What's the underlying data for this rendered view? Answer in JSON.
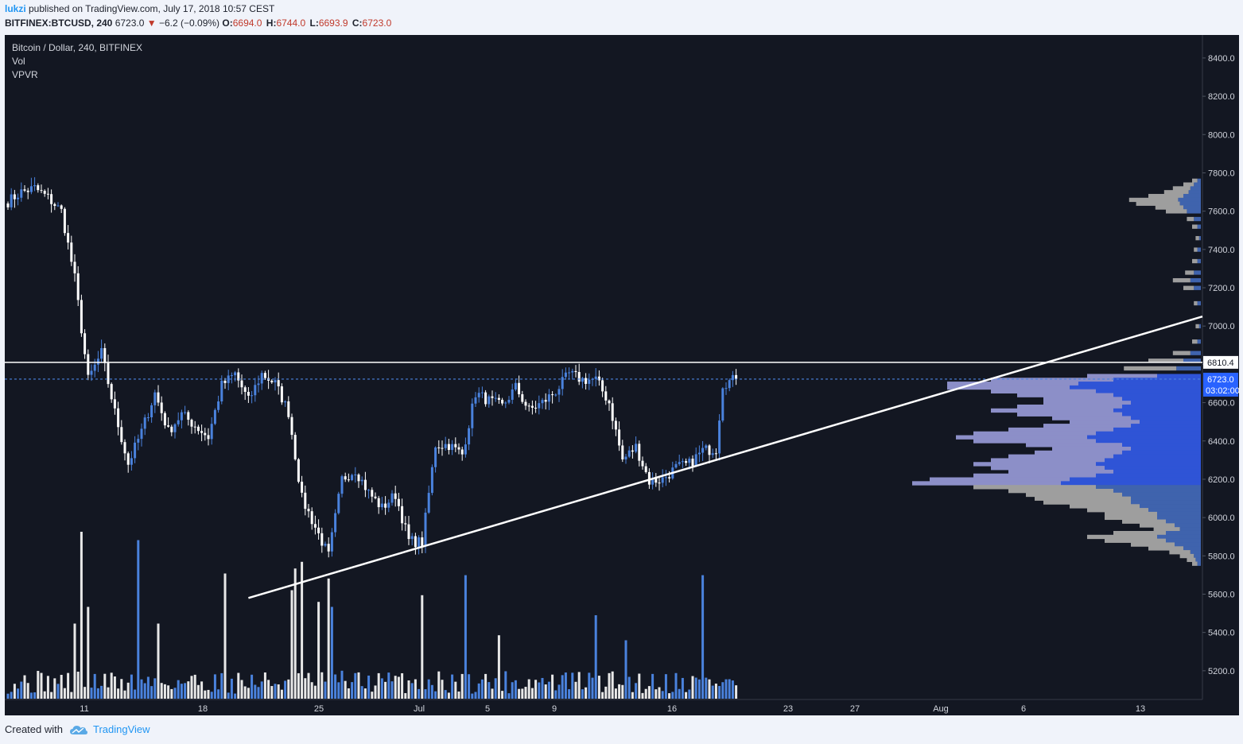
{
  "header": {
    "user": "lukzi",
    "published_text": " published on TradingView.com, July 17, 2018 10:57 CEST",
    "symbol": "BITFINEX:BTCUSD, 240",
    "last": "6723.0",
    "change": "−6.2 (−0.09%)",
    "o_label": "O:",
    "o_val": "6694.0",
    "h_label": "H:",
    "h_val": "6744.0",
    "l_label": "L:",
    "l_val": "6693.9",
    "c_label": "C:",
    "c_val": "6723.0"
  },
  "legend": {
    "title": "Bitcoin / Dollar, 240, BITFINEX",
    "vol": "Vol",
    "vpvr": "VPVR"
  },
  "footer": {
    "created_with": "Created with",
    "brand": "TradingView"
  },
  "colors": {
    "background": "#131722",
    "up": "#4a82dd",
    "down": "#ffffff",
    "profile_up": "#2f54d6",
    "profile_down": "#8c8fc8",
    "profile_gray": "#9e9e9e",
    "profile_gray_blue": "#3f63ad",
    "axis_text": "#d1d4dc",
    "label_bg": "#2962ff"
  },
  "chart_data": {
    "type": "candlestick",
    "symbol": "BTCUSD",
    "timeframe": "240",
    "ylim": [
      5050,
      8520
    ],
    "y_ticks": [
      5200,
      5400,
      5600,
      5800,
      6000,
      6200,
      6400,
      6600,
      6800,
      7000,
      7200,
      7400,
      7600,
      7800,
      8000,
      8200,
      8400
    ],
    "x_ticks": [
      "11",
      "18",
      "25",
      "Jul",
      "5",
      "9",
      "16",
      "23",
      "27",
      "Aug",
      "6",
      "13"
    ],
    "anchors": [
      {
        "t": 0,
        "p": 7650
      },
      {
        "t": 4,
        "p": 7700
      },
      {
        "t": 8,
        "p": 7720
      },
      {
        "t": 12,
        "p": 7670
      },
      {
        "t": 16,
        "p": 7600
      },
      {
        "t": 20,
        "p": 7250
      },
      {
        "t": 24,
        "p": 6720
      },
      {
        "t": 28,
        "p": 6860
      },
      {
        "t": 32,
        "p": 6550
      },
      {
        "t": 36,
        "p": 6280
      },
      {
        "t": 40,
        "p": 6450
      },
      {
        "t": 44,
        "p": 6650
      },
      {
        "t": 48,
        "p": 6450
      },
      {
        "t": 52,
        "p": 6540
      },
      {
        "t": 56,
        "p": 6480
      },
      {
        "t": 60,
        "p": 6420
      },
      {
        "t": 64,
        "p": 6690
      },
      {
        "t": 68,
        "p": 6750
      },
      {
        "t": 72,
        "p": 6610
      },
      {
        "t": 76,
        "p": 6750
      },
      {
        "t": 80,
        "p": 6700
      },
      {
        "t": 84,
        "p": 6550
      },
      {
        "t": 88,
        "p": 6100
      },
      {
        "t": 92,
        "p": 5950
      },
      {
        "t": 96,
        "p": 5800
      },
      {
        "t": 100,
        "p": 6200
      },
      {
        "t": 104,
        "p": 6250
      },
      {
        "t": 108,
        "p": 6130
      },
      {
        "t": 112,
        "p": 6050
      },
      {
        "t": 116,
        "p": 6120
      },
      {
        "t": 120,
        "p": 5880
      },
      {
        "t": 124,
        "p": 5870
      },
      {
        "t": 128,
        "p": 6380
      },
      {
        "t": 132,
        "p": 6380
      },
      {
        "t": 136,
        "p": 6330
      },
      {
        "t": 140,
        "p": 6650
      },
      {
        "t": 144,
        "p": 6610
      },
      {
        "t": 148,
        "p": 6580
      },
      {
        "t": 152,
        "p": 6680
      },
      {
        "t": 156,
        "p": 6560
      },
      {
        "t": 160,
        "p": 6600
      },
      {
        "t": 164,
        "p": 6660
      },
      {
        "t": 168,
        "p": 6750
      },
      {
        "t": 172,
        "p": 6720
      },
      {
        "t": 176,
        "p": 6720
      },
      {
        "t": 180,
        "p": 6600
      },
      {
        "t": 184,
        "p": 6300
      },
      {
        "t": 188,
        "p": 6370
      },
      {
        "t": 192,
        "p": 6190
      },
      {
        "t": 196,
        "p": 6200
      },
      {
        "t": 200,
        "p": 6260
      },
      {
        "t": 204,
        "p": 6280
      },
      {
        "t": 208,
        "p": 6350
      },
      {
        "t": 212,
        "p": 6360
      },
      {
        "t": 214,
        "p": 6700
      },
      {
        "t": 218,
        "p": 6723
      }
    ],
    "resistance_level": 6810.4,
    "last_price": 6723.0,
    "countdown": "03:02:00",
    "trendline": {
      "p1": {
        "t": 72,
        "p": 5580
      },
      "p2": {
        "t": 370,
        "p": 7050
      }
    },
    "volume_spikes": [
      {
        "t": 22,
        "v": 1.0
      },
      {
        "t": 20,
        "v": 0.45
      },
      {
        "t": 24,
        "v": 0.55
      },
      {
        "t": 39,
        "v": 0.95
      },
      {
        "t": 45,
        "v": 0.45
      },
      {
        "t": 65,
        "v": 0.75
      },
      {
        "t": 85,
        "v": 0.65
      },
      {
        "t": 86,
        "v": 0.78
      },
      {
        "t": 88,
        "v": 0.82
      },
      {
        "t": 93,
        "v": 0.58
      },
      {
        "t": 96,
        "v": 0.72
      },
      {
        "t": 97,
        "v": 0.55
      },
      {
        "t": 124,
        "v": 0.62
      },
      {
        "t": 137,
        "v": 0.74
      },
      {
        "t": 147,
        "v": 0.38
      },
      {
        "t": 176,
        "v": 0.5
      },
      {
        "t": 208,
        "v": 0.74
      },
      {
        "t": 185,
        "v": 0.35
      }
    ],
    "volume_profile": [
      {
        "p": 7760,
        "up": 0.002,
        "dn": 0.003,
        "kind": "gray"
      },
      {
        "p": 7740,
        "up": 0.004,
        "dn": 0.006,
        "kind": "gray"
      },
      {
        "p": 7720,
        "up": 0.006,
        "dn": 0.01,
        "kind": "gray"
      },
      {
        "p": 7700,
        "up": 0.007,
        "dn": 0.014,
        "kind": "gray"
      },
      {
        "p": 7680,
        "up": 0.01,
        "dn": 0.02,
        "kind": "gray"
      },
      {
        "p": 7660,
        "up": 0.013,
        "dn": 0.028,
        "kind": "gray"
      },
      {
        "p": 7640,
        "up": 0.012,
        "dn": 0.025,
        "kind": "gray"
      },
      {
        "p": 7620,
        "up": 0.01,
        "dn": 0.016,
        "kind": "gray"
      },
      {
        "p": 7600,
        "up": 0.008,
        "dn": 0.012,
        "kind": "gray"
      },
      {
        "p": 7560,
        "up": 0.004,
        "dn": 0.004,
        "kind": "gray"
      },
      {
        "p": 7520,
        "up": 0.002,
        "dn": 0.003,
        "kind": "gray"
      },
      {
        "p": 7460,
        "up": 0.001,
        "dn": 0.002,
        "kind": "gray"
      },
      {
        "p": 7400,
        "up": 0.002,
        "dn": 0.002,
        "kind": "gray"
      },
      {
        "p": 7340,
        "up": 0.002,
        "dn": 0.003,
        "kind": "gray"
      },
      {
        "p": 7280,
        "up": 0.004,
        "dn": 0.005,
        "kind": "gray"
      },
      {
        "p": 7240,
        "up": 0.006,
        "dn": 0.01,
        "kind": "gray"
      },
      {
        "p": 7200,
        "up": 0.004,
        "dn": 0.006,
        "kind": "gray"
      },
      {
        "p": 7120,
        "up": 0.002,
        "dn": 0.002,
        "kind": "gray"
      },
      {
        "p": 7000,
        "up": 0.001,
        "dn": 0.002,
        "kind": "gray"
      },
      {
        "p": 6920,
        "up": 0.002,
        "dn": 0.003,
        "kind": "gray"
      },
      {
        "p": 6860,
        "up": 0.006,
        "dn": 0.01,
        "kind": "gray"
      },
      {
        "p": 6820,
        "up": 0.01,
        "dn": 0.02,
        "kind": "gray"
      },
      {
        "p": 6780,
        "up": 0.014,
        "dn": 0.03,
        "kind": "gray"
      },
      {
        "p": 6740,
        "up": 0.025,
        "dn": 0.04,
        "kind": "color"
      },
      {
        "p": 6720,
        "up": 0.05,
        "dn": 0.07,
        "kind": "color"
      },
      {
        "p": 6700,
        "up": 0.07,
        "dn": 0.075,
        "kind": "color"
      },
      {
        "p": 6680,
        "up": 0.075,
        "dn": 0.07,
        "kind": "color"
      },
      {
        "p": 6660,
        "up": 0.06,
        "dn": 0.06,
        "kind": "color"
      },
      {
        "p": 6640,
        "up": 0.05,
        "dn": 0.055,
        "kind": "color"
      },
      {
        "p": 6620,
        "up": 0.045,
        "dn": 0.045,
        "kind": "color"
      },
      {
        "p": 6600,
        "up": 0.04,
        "dn": 0.05,
        "kind": "color"
      },
      {
        "p": 6580,
        "up": 0.045,
        "dn": 0.06,
        "kind": "color"
      },
      {
        "p": 6560,
        "up": 0.05,
        "dn": 0.07,
        "kind": "color"
      },
      {
        "p": 6540,
        "up": 0.045,
        "dn": 0.06,
        "kind": "color"
      },
      {
        "p": 6520,
        "up": 0.04,
        "dn": 0.045,
        "kind": "color"
      },
      {
        "p": 6500,
        "up": 0.035,
        "dn": 0.04,
        "kind": "color"
      },
      {
        "p": 6480,
        "up": 0.04,
        "dn": 0.05,
        "kind": "color"
      },
      {
        "p": 6460,
        "up": 0.05,
        "dn": 0.06,
        "kind": "color"
      },
      {
        "p": 6440,
        "up": 0.06,
        "dn": 0.07,
        "kind": "color"
      },
      {
        "p": 6420,
        "up": 0.065,
        "dn": 0.075,
        "kind": "color"
      },
      {
        "p": 6400,
        "up": 0.06,
        "dn": 0.07,
        "kind": "color"
      },
      {
        "p": 6380,
        "up": 0.045,
        "dn": 0.055,
        "kind": "color"
      },
      {
        "p": 6360,
        "up": 0.04,
        "dn": 0.045,
        "kind": "color"
      },
      {
        "p": 6340,
        "up": 0.045,
        "dn": 0.05,
        "kind": "color"
      },
      {
        "p": 6320,
        "up": 0.05,
        "dn": 0.06,
        "kind": "color"
      },
      {
        "p": 6300,
        "up": 0.055,
        "dn": 0.065,
        "kind": "color"
      },
      {
        "p": 6280,
        "up": 0.06,
        "dn": 0.07,
        "kind": "color"
      },
      {
        "p": 6260,
        "up": 0.055,
        "dn": 0.065,
        "kind": "color"
      },
      {
        "p": 6240,
        "up": 0.05,
        "dn": 0.06,
        "kind": "color"
      },
      {
        "p": 6220,
        "up": 0.06,
        "dn": 0.07,
        "kind": "color"
      },
      {
        "p": 6200,
        "up": 0.075,
        "dn": 0.08,
        "kind": "color"
      },
      {
        "p": 6180,
        "up": 0.08,
        "dn": 0.085,
        "kind": "color"
      },
      {
        "p": 6160,
        "up": 0.06,
        "dn": 0.07,
        "kind": "gray"
      },
      {
        "p": 6140,
        "up": 0.05,
        "dn": 0.06,
        "kind": "gray"
      },
      {
        "p": 6120,
        "up": 0.045,
        "dn": 0.055,
        "kind": "gray"
      },
      {
        "p": 6100,
        "up": 0.04,
        "dn": 0.055,
        "kind": "gray"
      },
      {
        "p": 6080,
        "up": 0.04,
        "dn": 0.05,
        "kind": "gray"
      },
      {
        "p": 6060,
        "up": 0.035,
        "dn": 0.04,
        "kind": "gray"
      },
      {
        "p": 6040,
        "up": 0.03,
        "dn": 0.035,
        "kind": "gray"
      },
      {
        "p": 6020,
        "up": 0.025,
        "dn": 0.03,
        "kind": "gray"
      },
      {
        "p": 6000,
        "up": 0.025,
        "dn": 0.03,
        "kind": "gray"
      },
      {
        "p": 5980,
        "up": 0.02,
        "dn": 0.025,
        "kind": "gray"
      },
      {
        "p": 5960,
        "up": 0.015,
        "dn": 0.02,
        "kind": "gray"
      },
      {
        "p": 5940,
        "up": 0.012,
        "dn": 0.015,
        "kind": "gray"
      },
      {
        "p": 5920,
        "up": 0.02,
        "dn": 0.03,
        "kind": "gray"
      },
      {
        "p": 5900,
        "up": 0.025,
        "dn": 0.04,
        "kind": "gray"
      },
      {
        "p": 5880,
        "up": 0.02,
        "dn": 0.035,
        "kind": "gray"
      },
      {
        "p": 5860,
        "up": 0.015,
        "dn": 0.025,
        "kind": "gray"
      },
      {
        "p": 5840,
        "up": 0.01,
        "dn": 0.02,
        "kind": "gray"
      },
      {
        "p": 5820,
        "up": 0.006,
        "dn": 0.012,
        "kind": "gray"
      },
      {
        "p": 5800,
        "up": 0.004,
        "dn": 0.008,
        "kind": "gray"
      },
      {
        "p": 5780,
        "up": 0.003,
        "dn": 0.005,
        "kind": "gray"
      },
      {
        "p": 5760,
        "up": 0.002,
        "dn": 0.003,
        "kind": "gray"
      }
    ]
  }
}
